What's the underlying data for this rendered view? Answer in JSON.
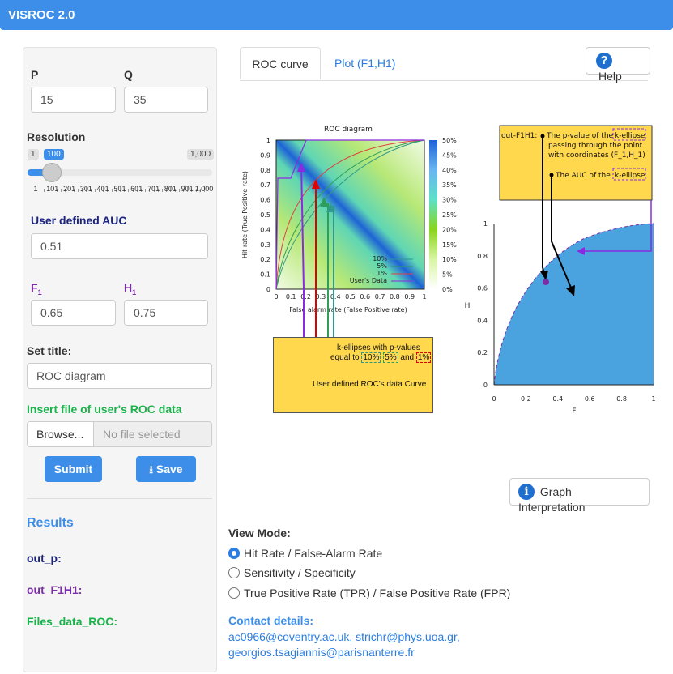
{
  "app": {
    "title": "VISROC 2.0"
  },
  "sidebar": {
    "p_label": "P",
    "p_value": "15",
    "q_label": "Q",
    "q_value": "35",
    "resolution_label": "Resolution",
    "resolution_min": "1",
    "resolution_value": "100",
    "resolution_max": "1,000",
    "resolution_ticks": [
      "1",
      "101",
      "201",
      "301",
      "401",
      "501",
      "601",
      "701",
      "801",
      "901",
      "1,000"
    ],
    "auc_label": "User defined AUC",
    "auc_value": "0.51",
    "f1_label": "F",
    "f1_sub": "1",
    "f1_value": "0.65",
    "h1_label": "H",
    "h1_sub": "1",
    "h1_value": "0.75",
    "title_label": "Set title:",
    "title_value": "ROC diagram",
    "file_label": "Insert file of user's ROC data",
    "browse_label": "Browse...",
    "file_status": "No file selected",
    "submit_label": "Submit",
    "save_label": "Save",
    "results_label": "Results",
    "out_p_label": "out_p:",
    "out_f1h1_label": "out_F1H1:",
    "files_label": "Files_data_ROC:"
  },
  "tabs": [
    {
      "label": "ROC curve",
      "active": true
    },
    {
      "label": "Plot (F1,H1)",
      "active": false
    }
  ],
  "help_label": "Help",
  "roc_plot": {
    "title": "ROC diagram",
    "xlabel": "False alarm rate (False Positive rate)",
    "ylabel": "Hit rate (True Positive rate)",
    "ticks": [
      "0",
      "0.1",
      "0.2",
      "0.3",
      "0.4",
      "0.5",
      "0.6",
      "0.7",
      "0.8",
      "0.9",
      "1"
    ],
    "colorbar_ticks": [
      "50%",
      "45%",
      "40%",
      "35%",
      "30%",
      "25%",
      "20%",
      "15%",
      "10%",
      "5%",
      "0%"
    ],
    "legend": [
      "10%",
      "5%",
      "1%",
      "User's Data"
    ],
    "annotation_ellipses": "k-ellipses with p-values",
    "annotation_equal": "equal to",
    "pv10": "10%",
    "pv5": "5%",
    "and": "and",
    "pv1": "1%",
    "annotation_user": "User defined ROC's data Curve"
  },
  "fh_plot": {
    "ylabel": "H",
    "xlabel": "F",
    "ticks": [
      "0",
      "0.2",
      "0.4",
      "0.6",
      "0.8",
      "1"
    ],
    "out_label": "out-F1H1:",
    "pvalue_line1": "The p-value of the",
    "pvalue_kellipse": "k-ellipse",
    "pvalue_line2": "passing through the point",
    "pvalue_line3": "with coordinates (F_1,H_1)",
    "auc_line": "The  AUC of the",
    "auc_kellipse": "k-ellipse"
  },
  "graph_interpretation_label": "Graph Interpretation",
  "view_mode": {
    "label": "View Mode:",
    "options": [
      "Hit Rate / False-Alarm Rate",
      "Sensitivity / Specificity",
      "True Positive Rate (TPR) / False Positive Rate (FPR)"
    ],
    "selected": 0
  },
  "contact": {
    "label": "Contact details:",
    "line1": "ac0966@coventry.ac.uk, strichr@phys.uoa.gr,",
    "line2": "georgios.tsagiannis@parisnanterre.fr"
  },
  "colors": {
    "primary": "#3c8ee8",
    "purple": "#7b2fa6",
    "navy": "#1a237e",
    "green": "#19b34a",
    "annotation_bg": "#ffd84d",
    "fill_blue": "#4aa3df"
  }
}
